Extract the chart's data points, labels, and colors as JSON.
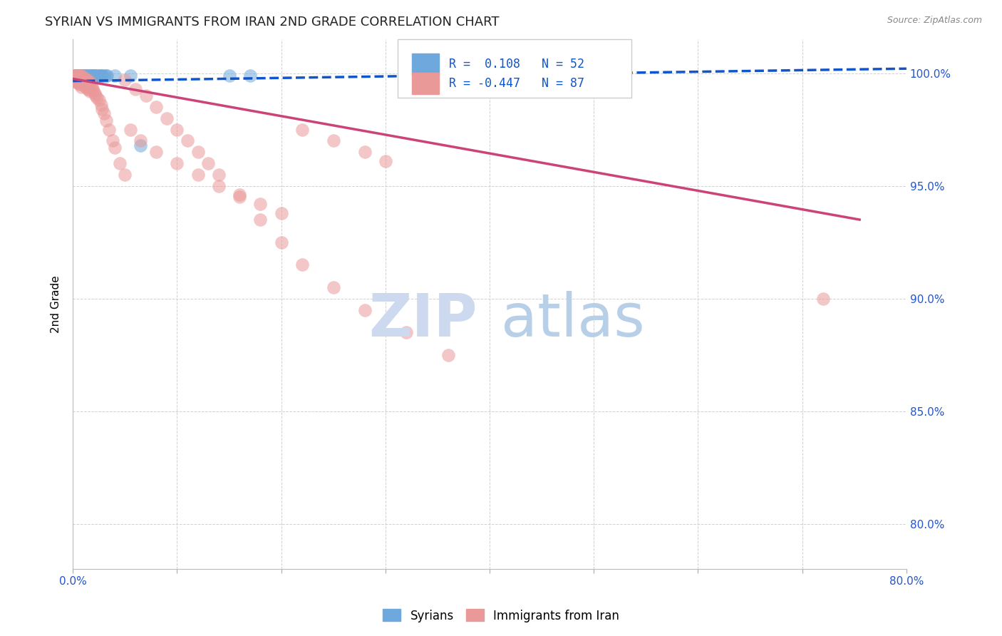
{
  "title": "SYRIAN VS IMMIGRANTS FROM IRAN 2ND GRADE CORRELATION CHART",
  "source": "Source: ZipAtlas.com",
  "ylabel": "2nd Grade",
  "x_tick_labels": [
    "0.0%",
    "",
    "",
    "",
    "",
    "",
    "",
    "",
    "80.0%"
  ],
  "y_tick_labels": [
    "80.0%",
    "85.0%",
    "90.0%",
    "95.0%",
    "100.0%"
  ],
  "xlim": [
    0.0,
    0.8
  ],
  "ylim": [
    0.78,
    1.015
  ],
  "y_ticks": [
    0.8,
    0.85,
    0.9,
    0.95,
    1.0
  ],
  "blue_R": 0.108,
  "blue_N": 52,
  "pink_R": -0.447,
  "pink_N": 87,
  "blue_color": "#6fa8dc",
  "pink_color": "#ea9999",
  "blue_line_color": "#1155cc",
  "pink_line_color": "#cc4477",
  "legend_label_blue": "Syrians",
  "legend_label_pink": "Immigrants from Iran",
  "blue_line_x": [
    0.0,
    0.8
  ],
  "blue_line_y": [
    0.9965,
    1.002
  ],
  "pink_line_x": [
    0.0,
    0.755
  ],
  "pink_line_y": [
    0.9975,
    0.935
  ],
  "blue_scatter_x": [
    0.002,
    0.002,
    0.003,
    0.003,
    0.004,
    0.004,
    0.005,
    0.005,
    0.006,
    0.006,
    0.007,
    0.007,
    0.007,
    0.008,
    0.008,
    0.009,
    0.009,
    0.01,
    0.01,
    0.011,
    0.011,
    0.012,
    0.012,
    0.013,
    0.013,
    0.014,
    0.014,
    0.015,
    0.015,
    0.016,
    0.016,
    0.017,
    0.018,
    0.019,
    0.02,
    0.021,
    0.022,
    0.023,
    0.025,
    0.026,
    0.027,
    0.028,
    0.03,
    0.032,
    0.033,
    0.04,
    0.055,
    0.065,
    0.15,
    0.17,
    0.32,
    0.33
  ],
  "blue_scatter_y": [
    0.999,
    0.998,
    0.999,
    0.997,
    0.999,
    0.998,
    0.999,
    0.998,
    0.999,
    0.998,
    0.999,
    0.998,
    0.997,
    0.999,
    0.998,
    0.999,
    0.998,
    0.999,
    0.997,
    0.999,
    0.998,
    0.999,
    0.998,
    0.999,
    0.997,
    0.999,
    0.997,
    0.999,
    0.998,
    0.999,
    0.998,
    0.999,
    0.999,
    0.999,
    0.999,
    0.999,
    0.999,
    0.999,
    0.999,
    0.999,
    0.999,
    0.999,
    0.999,
    0.999,
    0.999,
    0.999,
    0.999,
    0.968,
    0.999,
    0.999,
    0.999,
    0.999
  ],
  "pink_scatter_x": [
    0.001,
    0.001,
    0.002,
    0.002,
    0.003,
    0.003,
    0.003,
    0.004,
    0.004,
    0.004,
    0.005,
    0.005,
    0.005,
    0.006,
    0.006,
    0.006,
    0.007,
    0.007,
    0.007,
    0.008,
    0.008,
    0.008,
    0.009,
    0.009,
    0.01,
    0.01,
    0.011,
    0.011,
    0.012,
    0.012,
    0.013,
    0.013,
    0.014,
    0.014,
    0.015,
    0.015,
    0.016,
    0.016,
    0.017,
    0.018,
    0.019,
    0.02,
    0.021,
    0.022,
    0.023,
    0.025,
    0.027,
    0.028,
    0.03,
    0.032,
    0.035,
    0.038,
    0.04,
    0.045,
    0.05,
    0.055,
    0.065,
    0.08,
    0.1,
    0.12,
    0.14,
    0.16,
    0.18,
    0.2,
    0.22,
    0.25,
    0.28,
    0.3,
    0.05,
    0.06,
    0.07,
    0.08,
    0.09,
    0.1,
    0.11,
    0.12,
    0.13,
    0.14,
    0.16,
    0.18,
    0.2,
    0.22,
    0.25,
    0.28,
    0.32,
    0.36,
    0.72
  ],
  "pink_scatter_y": [
    0.999,
    0.997,
    0.999,
    0.997,
    0.999,
    0.998,
    0.996,
    0.999,
    0.998,
    0.996,
    0.999,
    0.998,
    0.996,
    0.999,
    0.997,
    0.995,
    0.999,
    0.997,
    0.995,
    0.999,
    0.997,
    0.994,
    0.998,
    0.996,
    0.998,
    0.995,
    0.998,
    0.995,
    0.997,
    0.994,
    0.997,
    0.994,
    0.997,
    0.993,
    0.996,
    0.993,
    0.996,
    0.992,
    0.995,
    0.994,
    0.993,
    0.992,
    0.991,
    0.99,
    0.989,
    0.988,
    0.986,
    0.984,
    0.982,
    0.979,
    0.975,
    0.97,
    0.967,
    0.96,
    0.955,
    0.975,
    0.97,
    0.965,
    0.96,
    0.955,
    0.95,
    0.946,
    0.942,
    0.938,
    0.975,
    0.97,
    0.965,
    0.961,
    0.997,
    0.993,
    0.99,
    0.985,
    0.98,
    0.975,
    0.97,
    0.965,
    0.96,
    0.955,
    0.945,
    0.935,
    0.925,
    0.915,
    0.905,
    0.895,
    0.885,
    0.875,
    0.9
  ]
}
